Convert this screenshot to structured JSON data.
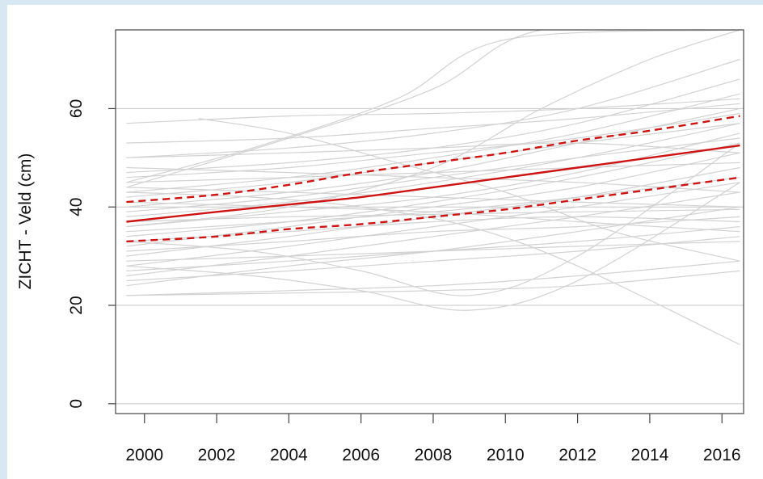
{
  "chart_data": {
    "type": "line",
    "title": "",
    "xlabel": "",
    "ylabel": "ZICHT - Veld (cm)",
    "xlim": [
      1999.2,
      2016.6
    ],
    "ylim": [
      -2,
      76
    ],
    "x_ticks": [
      "2000",
      "2002",
      "2004",
      "2006",
      "2008",
      "2010",
      "2012",
      "2014",
      "2016"
    ],
    "y_ticks": [
      "0",
      "20",
      "40",
      "60"
    ],
    "horizontal_grid": [
      0,
      20,
      40,
      60
    ],
    "grid": true,
    "legend": "none",
    "colors": {
      "trend": "#cc1414",
      "individual": "#d2d2d2",
      "grid": "#c8c8c8",
      "frame": "#444444"
    },
    "series": [
      {
        "role": "trend",
        "style": "solid",
        "x": [
          1999.5,
          2002,
          2004,
          2006,
          2008,
          2010,
          2012,
          2014,
          2016.5
        ],
        "y": [
          37,
          39,
          40.5,
          42,
          44,
          46,
          48,
          50,
          52.5
        ]
      },
      {
        "role": "upper-bound",
        "style": "dashed",
        "x": [
          1999.5,
          2002,
          2004,
          2006,
          2008,
          2010,
          2012,
          2014,
          2016.5
        ],
        "y": [
          41,
          42.5,
          44.5,
          47,
          49,
          51,
          53.5,
          55.5,
          58.5
        ]
      },
      {
        "role": "lower-bound",
        "style": "dashed",
        "x": [
          1999.5,
          2002,
          2004,
          2006,
          2008,
          2010,
          2012,
          2014,
          2016.5
        ],
        "y": [
          33,
          34,
          35.5,
          36.5,
          38,
          39.5,
          41.5,
          43.5,
          46
        ]
      }
    ],
    "individual_lines": [
      {
        "x": [
          1999.5,
          2004,
          2008,
          2012,
          2016.5
        ],
        "y": [
          57,
          58.5,
          59,
          60,
          62
        ]
      },
      {
        "x": [
          1999.5,
          2004,
          2008,
          2011,
          2016.5
        ],
        "y": [
          44,
          54,
          64,
          76,
          76
        ]
      },
      {
        "x": [
          1999.5,
          2003,
          2007,
          2010,
          2016.5
        ],
        "y": [
          45,
          52,
          62,
          74,
          76
        ]
      },
      {
        "x": [
          1999.5,
          2004,
          2008,
          2012,
          2016.5
        ],
        "y": [
          50,
          52,
          55,
          60,
          70
        ]
      },
      {
        "x": [
          1999.5,
          2004,
          2008,
          2012,
          2016.5
        ],
        "y": [
          47,
          49,
          52,
          57,
          66
        ]
      },
      {
        "x": [
          1999.5,
          2004,
          2008,
          2012,
          2016.5
        ],
        "y": [
          43,
          46,
          50,
          55,
          63
        ]
      },
      {
        "x": [
          1999.5,
          2004,
          2008,
          2012,
          2016.5
        ],
        "y": [
          40,
          43,
          47,
          53,
          60
        ]
      },
      {
        "x": [
          1999.5,
          2004,
          2008,
          2012,
          2016.5
        ],
        "y": [
          38,
          41,
          45,
          50,
          57
        ]
      },
      {
        "x": [
          1999.5,
          2004,
          2008,
          2012,
          2016.5
        ],
        "y": [
          36,
          39,
          42,
          47,
          55
        ]
      },
      {
        "x": [
          1999.5,
          2004,
          2008,
          2012,
          2016.5
        ],
        "y": [
          34,
          37,
          41,
          46,
          53
        ]
      },
      {
        "x": [
          1999.5,
          2004,
          2008,
          2012,
          2016.5
        ],
        "y": [
          32,
          36,
          40,
          44,
          51
        ]
      },
      {
        "x": [
          1999.5,
          2004,
          2008,
          2012,
          2016.5
        ],
        "y": [
          30,
          34,
          38,
          42,
          48
        ]
      },
      {
        "x": [
          1999.5,
          2004,
          2008,
          2012,
          2016.5
        ],
        "y": [
          28,
          32,
          36,
          40,
          45
        ]
      },
      {
        "x": [
          1999.5,
          2004,
          2008,
          2012,
          2016.5
        ],
        "y": [
          26,
          30,
          34,
          38,
          43
        ]
      },
      {
        "x": [
          1999.5,
          2004,
          2008,
          2012,
          2016.5
        ],
        "y": [
          24,
          28,
          31,
          35,
          40
        ]
      },
      {
        "x": [
          1999.5,
          2004,
          2008,
          2012,
          2016.5
        ],
        "y": [
          22,
          23,
          24,
          26,
          29
        ]
      },
      {
        "x": [
          1999.5,
          2004,
          2008,
          2012,
          2016.5
        ],
        "y": [
          22,
          22.5,
          23,
          24,
          27
        ]
      },
      {
        "x": [
          1999.5,
          2004,
          2008,
          2012,
          2016.5
        ],
        "y": [
          27,
          29,
          31,
          33,
          36
        ]
      },
      {
        "x": [
          1999.5,
          2004,
          2008,
          2012,
          2016.5
        ],
        "y": [
          31,
          33,
          35,
          36,
          38
        ]
      },
      {
        "x": [
          1999.5,
          2004,
          2008,
          2012,
          2016.5
        ],
        "y": [
          35,
          37,
          39,
          42,
          46
        ]
      },
      {
        "x": [
          1999.5,
          2004,
          2008,
          2012,
          2016.5
        ],
        "y": [
          39,
          42,
          46,
          50,
          54
        ]
      },
      {
        "x": [
          1999.5,
          2004,
          2008,
          2012,
          2016.5
        ],
        "y": [
          42,
          45,
          49,
          53,
          57
        ]
      },
      {
        "x": [
          1999.5,
          2004,
          2008,
          2012,
          2016.5
        ],
        "y": [
          46,
          48,
          51,
          54,
          59
        ]
      },
      {
        "x": [
          1999.5,
          2004,
          2008,
          2012,
          2016.5
        ],
        "y": [
          53,
          54,
          56,
          58,
          61
        ]
      },
      {
        "x": [
          1999.5,
          2004,
          2008,
          2012,
          2016.5
        ],
        "y": [
          48,
          47,
          46,
          45,
          43
        ]
      },
      {
        "x": [
          1999.5,
          2004,
          2008,
          2012,
          2016.5
        ],
        "y": [
          44,
          43,
          42,
          41,
          40
        ]
      },
      {
        "x": [
          1999.5,
          2004,
          2008,
          2012,
          2016.5
        ],
        "y": [
          41,
          40,
          39,
          37,
          35
        ]
      },
      {
        "x": [
          1999.5,
          2003,
          2006,
          2009,
          2012,
          2016.5
        ],
        "y": [
          43,
          42,
          40,
          36,
          28,
          12
        ]
      },
      {
        "x": [
          2001.5,
          2004,
          2007,
          2010,
          2013,
          2016.5
        ],
        "y": [
          58,
          55,
          49,
          43,
          35,
          29
        ]
      },
      {
        "x": [
          1999.5,
          2003,
          2006,
          2009,
          2012,
          2016.5
        ],
        "y": [
          28,
          26,
          23,
          19,
          25,
          45
        ]
      },
      {
        "x": [
          1999.5,
          2003,
          2006,
          2009,
          2012,
          2016.5
        ],
        "y": [
          33,
          31,
          27,
          22,
          30,
          53
        ]
      },
      {
        "x": [
          1999.5,
          2004,
          2008,
          2012,
          2016.5
        ],
        "y": [
          37,
          38,
          38.5,
          39,
          39.5
        ]
      },
      {
        "x": [
          1999.5,
          2004,
          2008,
          2012,
          2016.5
        ],
        "y": [
          45,
          46,
          47,
          48,
          49
        ]
      },
      {
        "x": [
          1999.5,
          2004,
          2008,
          2012,
          2016.5
        ],
        "y": [
          29,
          30,
          31,
          32,
          33
        ]
      },
      {
        "x": [
          1999.5,
          2004,
          2008,
          2011,
          2014,
          2016.5
        ],
        "y": [
          36,
          40,
          48,
          60,
          70,
          76
        ]
      },
      {
        "x": [
          1999.5,
          2004,
          2008,
          2012,
          2016.5
        ],
        "y": [
          50,
          51,
          52,
          53,
          51
        ]
      },
      {
        "x": [
          1999.5,
          2004,
          2008,
          2012,
          2016.5
        ],
        "y": [
          33,
          35,
          37,
          38,
          37
        ]
      },
      {
        "x": [
          1999.5,
          2004,
          2008,
          2012,
          2016.5
        ],
        "y": [
          25,
          27,
          29,
          31,
          34
        ]
      }
    ]
  }
}
